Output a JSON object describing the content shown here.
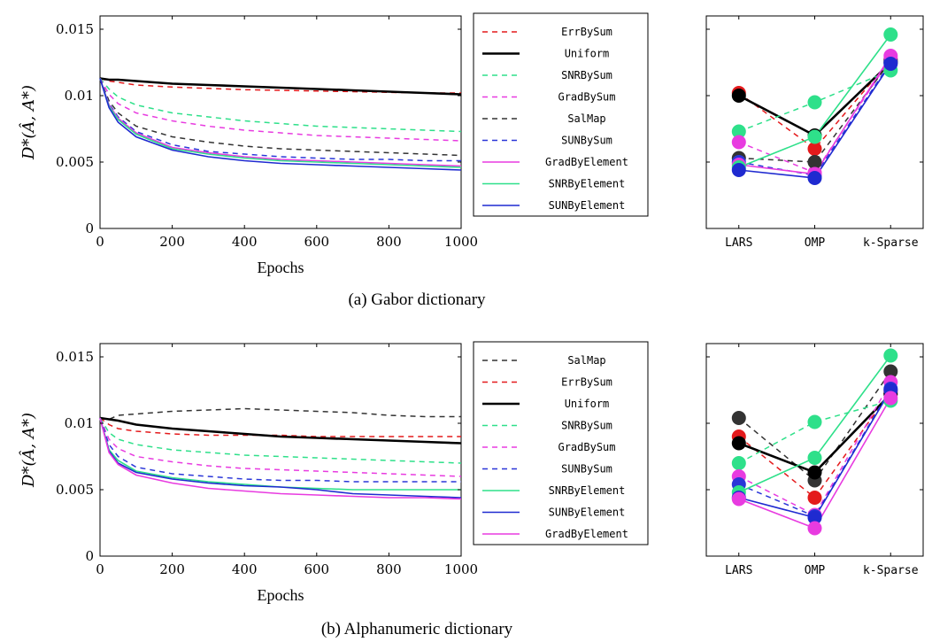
{
  "chart_data": [
    {
      "type": "line",
      "caption": "(a) Gabor dictionary",
      "xlabel": "Epochs",
      "ylabel": "D*(Â, A*)",
      "xlim": [
        0,
        1000
      ],
      "ylim": [
        0,
        0.016
      ],
      "xticks": [
        "0",
        "200",
        "400",
        "600",
        "800",
        "1000"
      ],
      "yticks": [
        "0",
        "0.005",
        "0.01",
        "0.015"
      ],
      "legend": "right",
      "grid": false,
      "x": [
        0,
        25,
        50,
        100,
        200,
        300,
        400,
        500,
        600,
        700,
        800,
        900,
        1000
      ],
      "series": [
        {
          "name": "ErrBySum",
          "color": "#e41a1c",
          "style": "dashed",
          "values": [
            0.0113,
            0.0111,
            0.011,
            0.0108,
            0.01065,
            0.01055,
            0.01045,
            0.0104,
            0.01035,
            0.0103,
            0.01025,
            0.0102,
            0.0102
          ]
        },
        {
          "name": "Uniform",
          "color": "#000000",
          "style": "solid-thick",
          "values": [
            0.0113,
            0.0112,
            0.0112,
            0.0111,
            0.0109,
            0.0108,
            0.0107,
            0.0106,
            0.0105,
            0.0104,
            0.0103,
            0.0102,
            0.0101
          ]
        },
        {
          "name": "SNRBySum",
          "color": "#2ee08a",
          "style": "dashed",
          "values": [
            0.0113,
            0.0105,
            0.0099,
            0.0093,
            0.0087,
            0.0084,
            0.0081,
            0.0079,
            0.0077,
            0.0076,
            0.0075,
            0.0074,
            0.0073
          ]
        },
        {
          "name": "GradBySum",
          "color": "#e83be0",
          "style": "dashed",
          "values": [
            0.0113,
            0.0101,
            0.0094,
            0.0087,
            0.0081,
            0.0077,
            0.0074,
            0.0072,
            0.007,
            0.0069,
            0.0068,
            0.0067,
            0.0066
          ]
        },
        {
          "name": "SalMap",
          "color": "#333333",
          "style": "dashed",
          "values": [
            0.0113,
            0.0096,
            0.0087,
            0.0077,
            0.0069,
            0.0065,
            0.0062,
            0.006,
            0.0059,
            0.0058,
            0.0057,
            0.0056,
            0.0055
          ]
        },
        {
          "name": "SUNBySum",
          "color": "#2a36d8",
          "style": "dashed",
          "values": [
            0.0113,
            0.0094,
            0.0084,
            0.0073,
            0.0063,
            0.0058,
            0.0056,
            0.0054,
            0.0053,
            0.0052,
            0.0052,
            0.0051,
            0.0051
          ]
        },
        {
          "name": "GradByElement",
          "color": "#e83be0",
          "style": "solid",
          "values": [
            0.0113,
            0.0093,
            0.0083,
            0.0072,
            0.0061,
            0.0057,
            0.0054,
            0.0052,
            0.0051,
            0.005,
            0.0049,
            0.0048,
            0.0047
          ]
        },
        {
          "name": "SNRByElement",
          "color": "#2ee08a",
          "style": "solid",
          "values": [
            0.0113,
            0.0092,
            0.0082,
            0.0071,
            0.006,
            0.0056,
            0.0053,
            0.0051,
            0.005,
            0.0049,
            0.0048,
            0.0047,
            0.0046
          ]
        },
        {
          "name": "SUNByElement",
          "color": "#1f2ad0",
          "style": "solid",
          "values": [
            0.0113,
            0.0091,
            0.008,
            0.0069,
            0.0059,
            0.0054,
            0.0051,
            0.0049,
            0.0048,
            0.0047,
            0.0046,
            0.0045,
            0.0044
          ]
        }
      ]
    },
    {
      "type": "scatter",
      "categories": [
        "LARS",
        "OMP",
        "k-Sparse"
      ],
      "ylim": [
        0,
        0.016
      ],
      "grid": false,
      "series": [
        {
          "name": "ErrBySum",
          "color": "#e41a1c",
          "style": "dashed",
          "values": [
            0.0102,
            0.006,
            0.0127
          ]
        },
        {
          "name": "Uniform",
          "color": "#000000",
          "style": "solid-thick",
          "values": [
            0.01,
            0.007,
            0.0125
          ]
        },
        {
          "name": "SNRBySum",
          "color": "#2ee08a",
          "style": "dashed",
          "values": [
            0.0073,
            0.0095,
            0.0119
          ]
        },
        {
          "name": "GradBySum",
          "color": "#e83be0",
          "style": "dashed",
          "values": [
            0.0065,
            0.0042,
            0.0128
          ]
        },
        {
          "name": "SalMap",
          "color": "#333333",
          "style": "dashed",
          "values": [
            0.0053,
            0.005,
            0.0126
          ]
        },
        {
          "name": "SUNBySum",
          "color": "#2a36d8",
          "style": "dashed",
          "values": [
            0.005,
            0.004,
            0.0125
          ]
        },
        {
          "name": "GradByElement",
          "color": "#e83be0",
          "style": "solid",
          "values": [
            0.0048,
            0.0041,
            0.013
          ]
        },
        {
          "name": "SNRByElement",
          "color": "#2ee08a",
          "style": "solid",
          "values": [
            0.0046,
            0.0069,
            0.0146
          ]
        },
        {
          "name": "SUNByElement",
          "color": "#1f2ad0",
          "style": "solid",
          "values": [
            0.0044,
            0.0038,
            0.0124
          ]
        }
      ]
    },
    {
      "type": "line",
      "caption": "(b) Alphanumeric dictionary",
      "xlabel": "Epochs",
      "ylabel": "D*(Â, A*)",
      "xlim": [
        0,
        1000
      ],
      "ylim": [
        0,
        0.016
      ],
      "xticks": [
        "0",
        "200",
        "400",
        "600",
        "800",
        "1000"
      ],
      "yticks": [
        "0",
        "0.005",
        "0.01",
        "0.015"
      ],
      "legend": "right",
      "grid": false,
      "x": [
        0,
        25,
        50,
        100,
        200,
        300,
        400,
        500,
        600,
        700,
        800,
        900,
        1000
      ],
      "series": [
        {
          "name": "SalMap",
          "color": "#333333",
          "style": "dashed",
          "values": [
            0.0104,
            0.0103,
            0.0106,
            0.0107,
            0.0109,
            0.011,
            0.0111,
            0.011,
            0.0109,
            0.0108,
            0.0106,
            0.0105,
            0.0105
          ]
        },
        {
          "name": "ErrBySum",
          "color": "#e41a1c",
          "style": "dashed",
          "values": [
            0.0104,
            0.0099,
            0.0096,
            0.0094,
            0.0092,
            0.0091,
            0.0091,
            0.0091,
            0.009,
            0.009,
            0.009,
            0.009,
            0.009
          ]
        },
        {
          "name": "Uniform",
          "color": "#000000",
          "style": "solid-thick",
          "values": [
            0.0104,
            0.0103,
            0.0102,
            0.0099,
            0.0096,
            0.0094,
            0.0092,
            0.009,
            0.0089,
            0.0088,
            0.0087,
            0.0086,
            0.0085
          ]
        },
        {
          "name": "SNRBySum",
          "color": "#2ee08a",
          "style": "dashed",
          "values": [
            0.0104,
            0.0093,
            0.0088,
            0.0084,
            0.008,
            0.0078,
            0.0076,
            0.0075,
            0.0074,
            0.0073,
            0.0072,
            0.0071,
            0.007
          ]
        },
        {
          "name": "GradBySum",
          "color": "#e83be0",
          "style": "dashed",
          "values": [
            0.0104,
            0.0088,
            0.0081,
            0.0075,
            0.0071,
            0.0068,
            0.0066,
            0.0065,
            0.0064,
            0.0063,
            0.0062,
            0.0061,
            0.006
          ]
        },
        {
          "name": "SUNBySum",
          "color": "#2a36d8",
          "style": "dashed",
          "values": [
            0.0104,
            0.0084,
            0.0075,
            0.0067,
            0.0062,
            0.006,
            0.0058,
            0.0057,
            0.0057,
            0.0056,
            0.0056,
            0.0056,
            0.0056
          ]
        },
        {
          "name": "SNRByElement",
          "color": "#2ee08a",
          "style": "solid",
          "values": [
            0.0104,
            0.008,
            0.0072,
            0.0064,
            0.0059,
            0.0056,
            0.0054,
            0.0052,
            0.0051,
            0.005,
            0.005,
            0.005,
            0.005
          ]
        },
        {
          "name": "SUNByElement",
          "color": "#1f2ad0",
          "style": "solid",
          "values": [
            0.0104,
            0.0079,
            0.007,
            0.0063,
            0.0058,
            0.0055,
            0.0053,
            0.0052,
            0.005,
            0.0047,
            0.0046,
            0.0045,
            0.0044
          ]
        },
        {
          "name": "GradByElement",
          "color": "#e83be0",
          "style": "solid",
          "values": [
            0.0104,
            0.0078,
            0.0069,
            0.0061,
            0.0055,
            0.0051,
            0.0049,
            0.0047,
            0.0046,
            0.0045,
            0.0044,
            0.0044,
            0.0043
          ]
        }
      ]
    },
    {
      "type": "scatter",
      "categories": [
        "LARS",
        "OMP",
        "k-Sparse"
      ],
      "ylim": [
        0,
        0.016
      ],
      "grid": false,
      "series": [
        {
          "name": "SalMap",
          "color": "#333333",
          "style": "dashed",
          "values": [
            0.0104,
            0.0057,
            0.0139
          ]
        },
        {
          "name": "ErrBySum",
          "color": "#e41a1c",
          "style": "dashed",
          "values": [
            0.009,
            0.0044,
            0.0124
          ]
        },
        {
          "name": "Uniform",
          "color": "#000000",
          "style": "solid-thick",
          "values": [
            0.0085,
            0.0063,
            0.0122
          ]
        },
        {
          "name": "SNRBySum",
          "color": "#2ee08a",
          "style": "dashed",
          "values": [
            0.007,
            0.0101,
            0.0117
          ]
        },
        {
          "name": "GradBySum",
          "color": "#e83be0",
          "style": "dashed",
          "values": [
            0.006,
            0.0031,
            0.0131
          ]
        },
        {
          "name": "SUNBySum",
          "color": "#2a36d8",
          "style": "dashed",
          "values": [
            0.0054,
            0.003,
            0.0126
          ]
        },
        {
          "name": "SNRByElement",
          "color": "#2ee08a",
          "style": "solid",
          "values": [
            0.0048,
            0.0074,
            0.0151
          ]
        },
        {
          "name": "SUNByElement",
          "color": "#1f2ad0",
          "style": "solid",
          "values": [
            0.0044,
            0.0029,
            0.0125
          ]
        },
        {
          "name": "GradByElement",
          "color": "#e83be0",
          "style": "solid",
          "values": [
            0.0043,
            0.0021,
            0.0119
          ]
        }
      ]
    }
  ]
}
